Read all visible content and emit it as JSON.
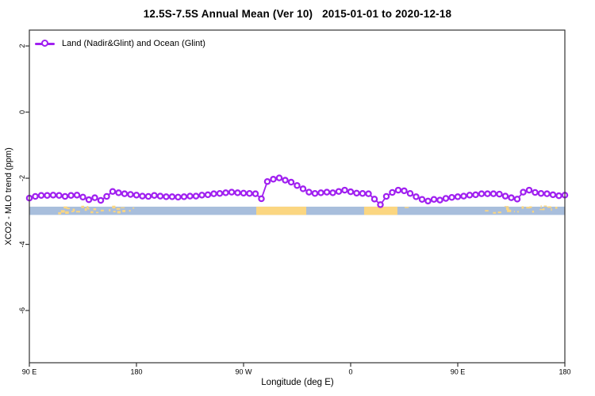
{
  "title": "12.5S-7.5S Annual Mean (Ver 10)   2015-01-01 to 2020-12-18",
  "legend": {
    "label": "Land (Nadir&Glint) and Ocean (Glint)",
    "position": "top-left"
  },
  "axes": {
    "x_title": "Longitude (deg E)",
    "y_title": "XCO2 - MLO trend (ppm)"
  },
  "chart_data": {
    "type": "line",
    "title": "12.5S-7.5S Annual Mean (Ver 10)   2015-01-01 to 2020-12-18",
    "xlabel": "Longitude (deg E)",
    "ylabel": "XCO2 - MLO trend (ppm)",
    "legend_position": "top-left",
    "grid": false,
    "x_range_deg": [
      90,
      540
    ],
    "ylim": [
      -7.58,
      2.48
    ],
    "x_ticks": [
      {
        "deg": 90,
        "label": "90 E"
      },
      {
        "deg": 180,
        "label": "180"
      },
      {
        "deg": 270,
        "label": "90 W"
      },
      {
        "deg": 360,
        "label": "0"
      },
      {
        "deg": 450,
        "label": "90 E"
      },
      {
        "deg": 540,
        "label": "180"
      }
    ],
    "y_ticks": [
      {
        "value": 2,
        "label": "2"
      },
      {
        "value": 0,
        "label": "0"
      },
      {
        "value": -2,
        "label": "-2"
      },
      {
        "value": -4,
        "label": "-4"
      },
      {
        "value": -6,
        "label": "-6"
      }
    ],
    "series": [
      {
        "name": "Land (Nadir&Glint) and Ocean (Glint)",
        "color": "#A020F0",
        "marker": "open-circle",
        "x_start_deg": 90,
        "x_step_deg": 5,
        "values": [
          -2.6,
          -2.55,
          -2.52,
          -2.52,
          -2.51,
          -2.52,
          -2.55,
          -2.52,
          -2.51,
          -2.57,
          -2.65,
          -2.59,
          -2.67,
          -2.55,
          -2.4,
          -2.44,
          -2.47,
          -2.49,
          -2.51,
          -2.54,
          -2.55,
          -2.52,
          -2.54,
          -2.56,
          -2.56,
          -2.57,
          -2.56,
          -2.54,
          -2.54,
          -2.51,
          -2.5,
          -2.47,
          -2.46,
          -2.44,
          -2.42,
          -2.44,
          -2.45,
          -2.46,
          -2.47,
          -2.62,
          -2.1,
          -2.03,
          -1.99,
          -2.06,
          -2.12,
          -2.22,
          -2.32,
          -2.42,
          -2.46,
          -2.44,
          -2.42,
          -2.44,
          -2.4,
          -2.36,
          -2.41,
          -2.45,
          -2.46,
          -2.47,
          -2.63,
          -2.8,
          -2.55,
          -2.43,
          -2.36,
          -2.38,
          -2.46,
          -2.56,
          -2.64,
          -2.69,
          -2.64,
          -2.66,
          -2.61,
          -2.58,
          -2.56,
          -2.54,
          -2.51,
          -2.5,
          -2.47,
          -2.47,
          -2.47,
          -2.48,
          -2.54,
          -2.59,
          -2.63,
          -2.42,
          -2.36,
          -2.43,
          -2.46,
          -2.47,
          -2.5,
          -2.53,
          -2.51
        ]
      }
    ],
    "map_strip": {
      "description": "land/ocean band for latitude 12.5S-7.5S",
      "ocean_color": "#A8BEDC",
      "land_color": "#FBD681",
      "y_top_value": -2.86,
      "y_bottom_value": -3.11,
      "segments": [
        {
          "type": "speckle",
          "from_deg": 112,
          "to_deg": 178,
          "name": "indonesia-islands"
        },
        {
          "type": "solid",
          "from_deg": 280.7,
          "to_deg": 322.7,
          "name": "south-america"
        },
        {
          "type": "solid",
          "from_deg": 371.3,
          "to_deg": 399.3,
          "name": "africa"
        },
        {
          "type": "speckle",
          "from_deg": 403,
          "to_deg": 412,
          "name": "madagascar-north"
        },
        {
          "type": "speckle",
          "from_deg": 472,
          "to_deg": 538,
          "name": "indonesia-islands-wrap"
        }
      ]
    }
  }
}
